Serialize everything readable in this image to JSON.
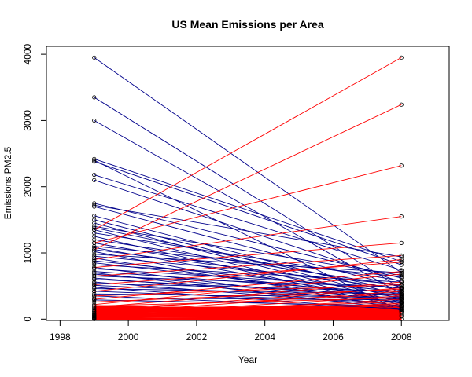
{
  "chart_data": {
    "type": "line",
    "title": "US Mean Emissions per Area",
    "xlabel": "Year",
    "ylabel": "Emissions PM2.5",
    "x_ticks": [
      "1998",
      "2000",
      "2002",
      "2004",
      "2006",
      "2008"
    ],
    "y_ticks": [
      "0",
      "1000",
      "2000",
      "3000",
      "4000"
    ],
    "xlim": [
      1997.6,
      2009.4
    ],
    "ylim": [
      -20,
      4120
    ],
    "x_years": [
      1999,
      2008
    ],
    "grid": false,
    "legend": "none",
    "colors": {
      "decrease": "#00008B",
      "increase": "#FF0000",
      "marker": "#000000",
      "frame": "#000000"
    },
    "series_pairs": [
      [
        3950,
        700
      ],
      [
        3350,
        460
      ],
      [
        3000,
        380
      ],
      [
        2420,
        870
      ],
      [
        2400,
        120
      ],
      [
        2380,
        820
      ],
      [
        2180,
        740
      ],
      [
        2100,
        560
      ],
      [
        1750,
        620
      ],
      [
        1720,
        940
      ],
      [
        1700,
        480
      ],
      [
        1560,
        360
      ],
      [
        1500,
        300
      ],
      [
        1450,
        250
      ],
      [
        1400,
        660
      ],
      [
        1380,
        430
      ],
      [
        1350,
        210
      ],
      [
        1300,
        580
      ],
      [
        1250,
        180
      ],
      [
        1200,
        500
      ],
      [
        1150,
        340
      ],
      [
        1100,
        640
      ],
      [
        1080,
        270
      ],
      [
        1050,
        460
      ],
      [
        1020,
        150
      ],
      [
        980,
        700
      ],
      [
        950,
        520
      ],
      [
        920,
        240
      ],
      [
        880,
        410
      ],
      [
        850,
        330
      ],
      [
        820,
        560
      ],
      [
        780,
        200
      ],
      [
        760,
        470
      ],
      [
        720,
        390
      ],
      [
        700,
        150
      ],
      [
        680,
        300
      ],
      [
        650,
        480
      ],
      [
        620,
        260
      ],
      [
        600,
        360
      ],
      [
        560,
        200
      ],
      [
        540,
        420
      ],
      [
        510,
        300
      ],
      [
        480,
        140
      ],
      [
        460,
        380
      ],
      [
        420,
        250
      ],
      [
        380,
        330
      ],
      [
        350,
        160
      ],
      [
        320,
        290
      ],
      [
        290,
        200
      ],
      [
        1350,
        3950
      ],
      [
        1050,
        3240
      ],
      [
        1150,
        2320
      ],
      [
        900,
        1550
      ],
      [
        780,
        1150
      ],
      [
        650,
        960
      ],
      [
        420,
        900
      ],
      [
        300,
        720
      ],
      [
        520,
        860
      ],
      [
        220,
        680
      ],
      [
        350,
        520
      ],
      [
        180,
        560
      ],
      [
        120,
        470
      ],
      [
        90,
        420
      ],
      [
        260,
        450
      ],
      [
        160,
        380
      ],
      [
        60,
        350
      ],
      [
        40,
        300
      ],
      [
        200,
        320
      ],
      [
        110,
        260
      ],
      [
        30,
        240
      ],
      [
        80,
        200
      ],
      [
        20,
        180
      ],
      [
        140,
        220
      ],
      [
        55,
        150
      ],
      [
        10,
        120
      ],
      [
        70,
        110
      ],
      [
        25,
        90
      ],
      [
        45,
        60
      ],
      [
        5,
        40
      ]
    ]
  }
}
